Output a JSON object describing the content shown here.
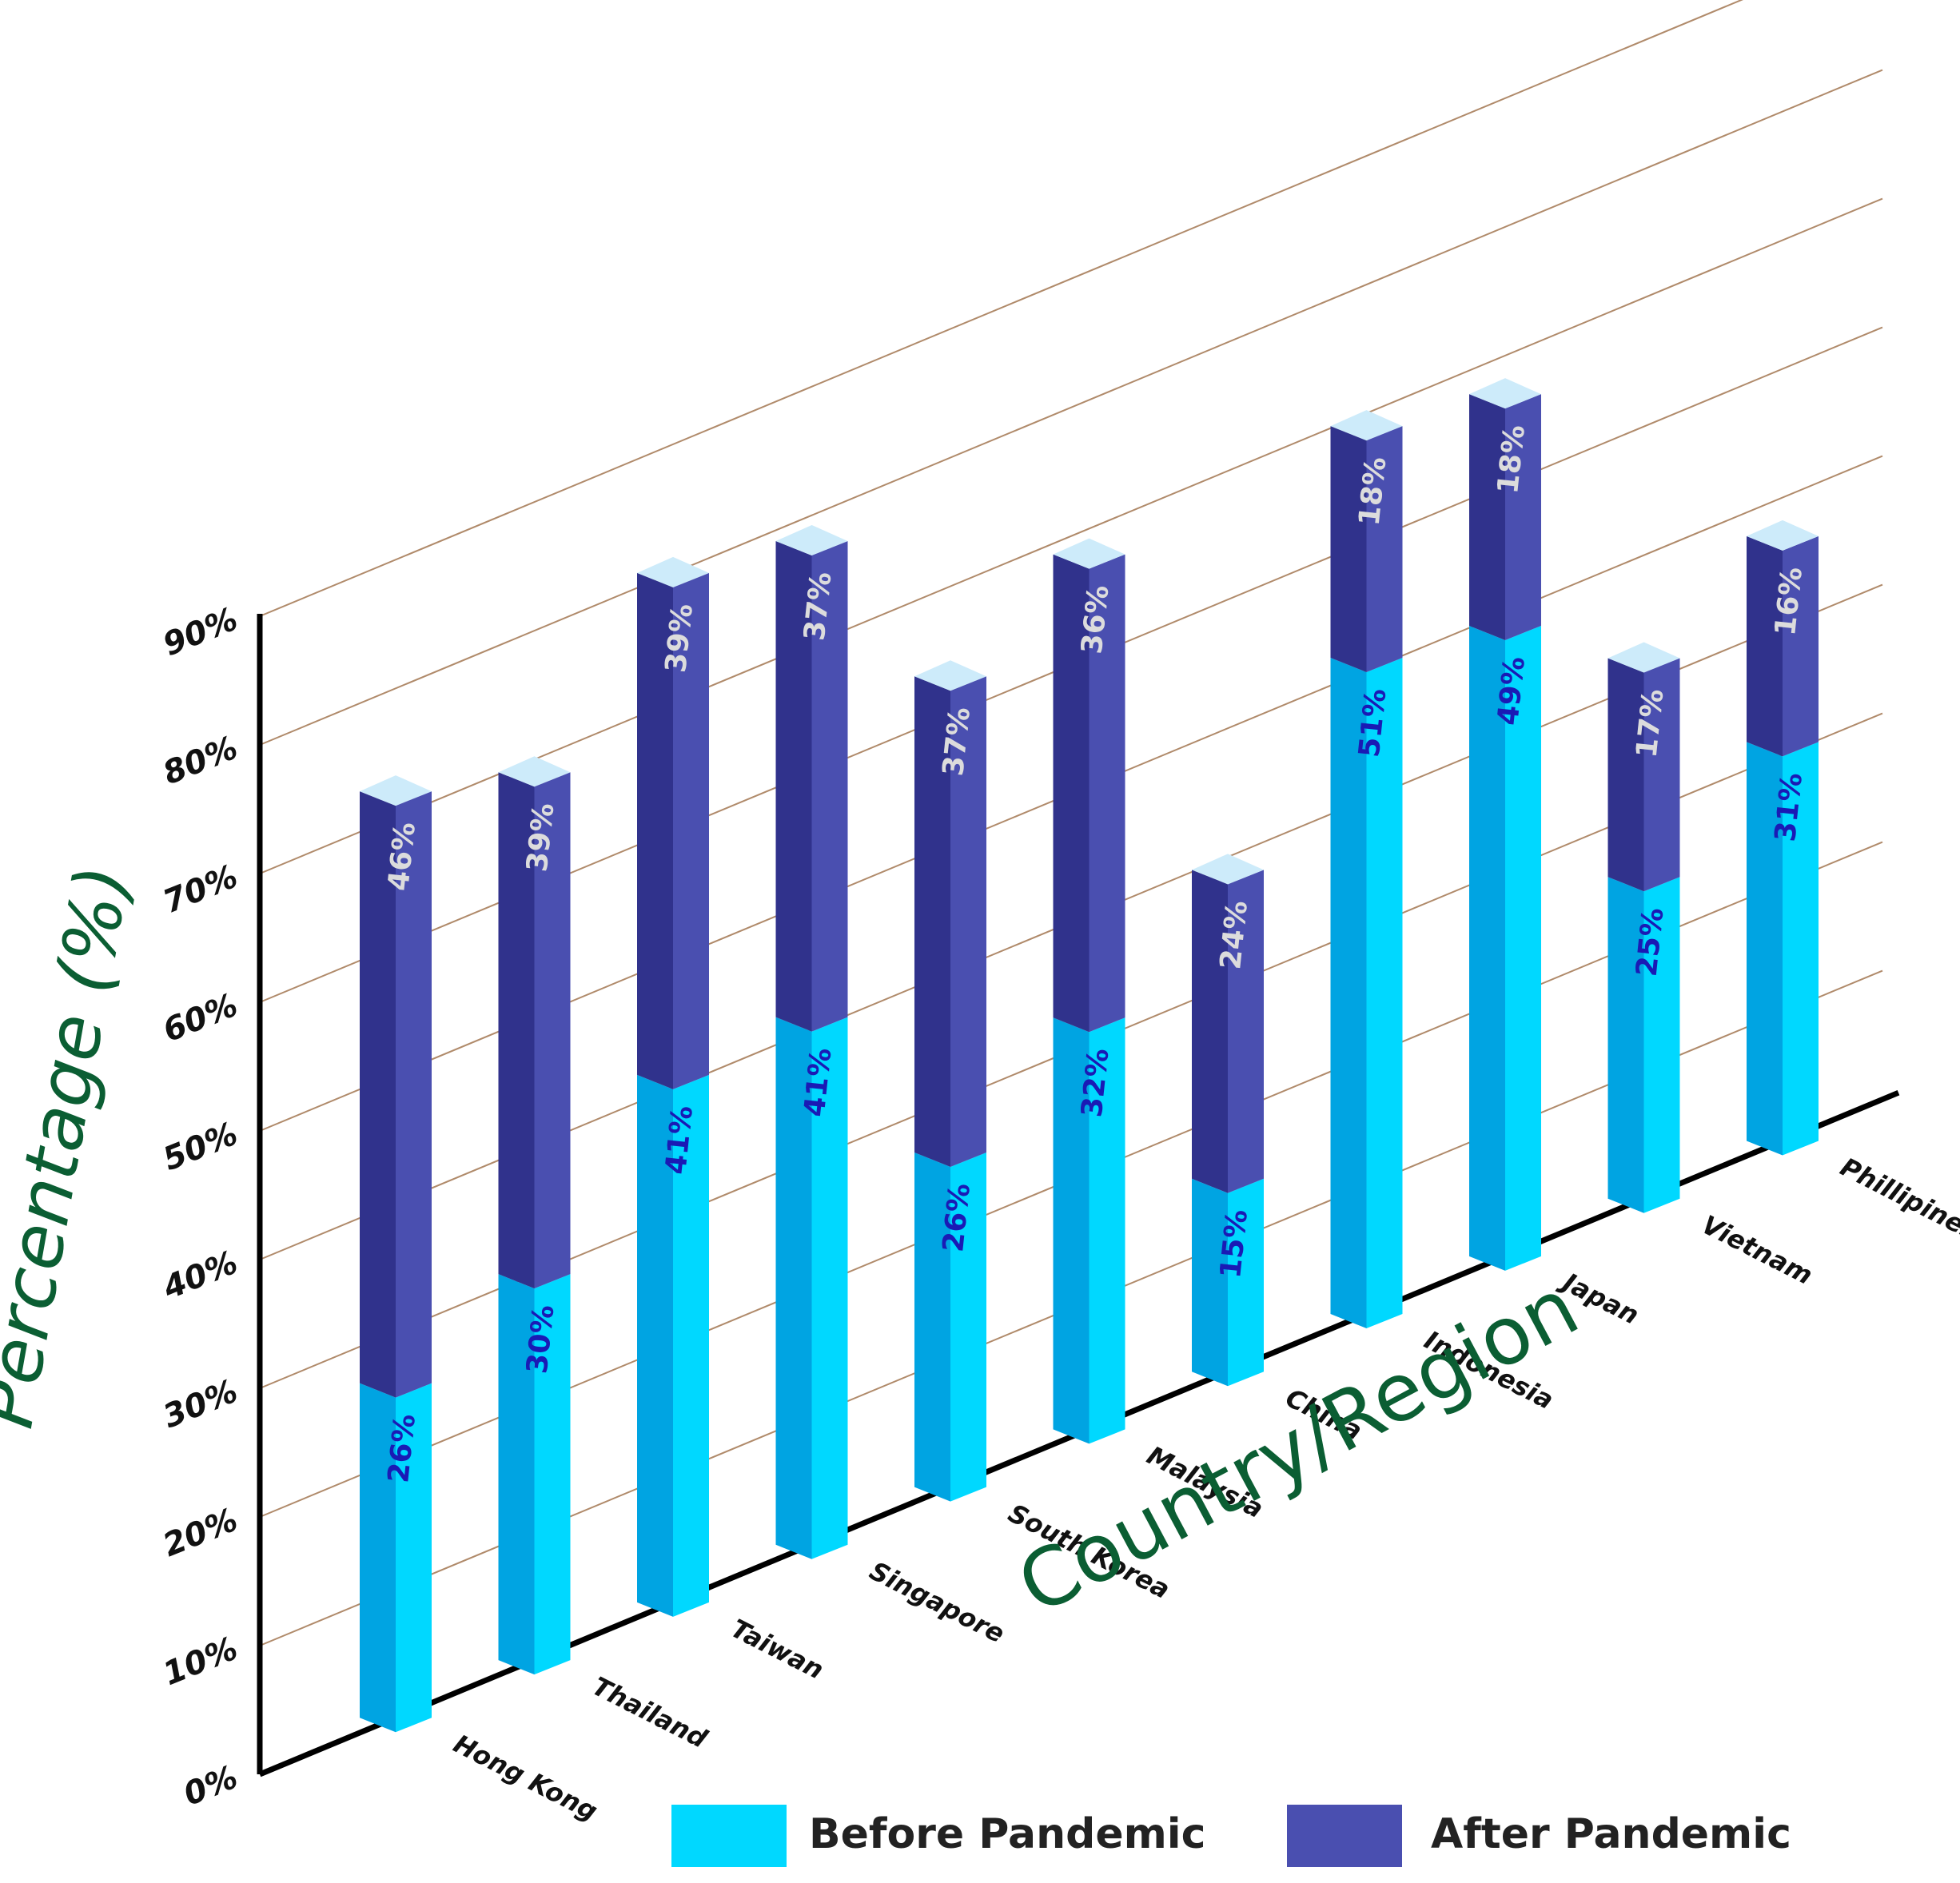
{
  "chart_data": {
    "type": "bar",
    "stacked": true,
    "style": "3d-isometric",
    "ylabel": "Percentage (%)",
    "xlabel": "Country/Region",
    "ylim": [
      0,
      90
    ],
    "yticks": [
      "0%",
      "10%",
      "20%",
      "30%",
      "40%",
      "50%",
      "60%",
      "70%",
      "80%",
      "90%"
    ],
    "grid": true,
    "legend_position": "bottom",
    "categories": [
      "Hong Kong",
      "Thailand",
      "Taiwan",
      "Singapore",
      "South Korea",
      "Malaysia",
      "China",
      "Indonesia",
      "Japan",
      "Vietnam",
      "Phillipines"
    ],
    "series": [
      {
        "name": "Before Pandemic",
        "values": [
          26,
          30,
          41,
          41,
          26,
          32,
          15,
          51,
          49,
          25,
          31
        ],
        "labels": [
          "26%",
          "30%",
          "41%",
          "41%",
          "26%",
          "32%",
          "15%",
          "51%",
          "49%",
          "25%",
          "31%"
        ],
        "color": "#00D8FF"
      },
      {
        "name": "After Pandemic",
        "values": [
          46,
          39,
          39,
          37,
          37,
          36,
          24,
          18,
          18,
          17,
          16
        ],
        "labels": [
          "46%",
          "39%",
          "39%",
          "37%",
          "37%",
          "36%",
          "24%",
          "18%",
          "18%",
          "17%",
          "16%"
        ],
        "color": "#4A4FB0"
      }
    ],
    "colors": {
      "axis_title": "#0B5E33",
      "gridline": "#B08A6A",
      "axis": "#000000",
      "before_front": "#00D8FF",
      "before_side": "#00A4E2",
      "after_front": "#4A4FB0",
      "after_side": "#30328C",
      "cap": "#CDEBFA",
      "before_label": "#1A1AB5",
      "after_label": "#DCDCDC"
    }
  }
}
